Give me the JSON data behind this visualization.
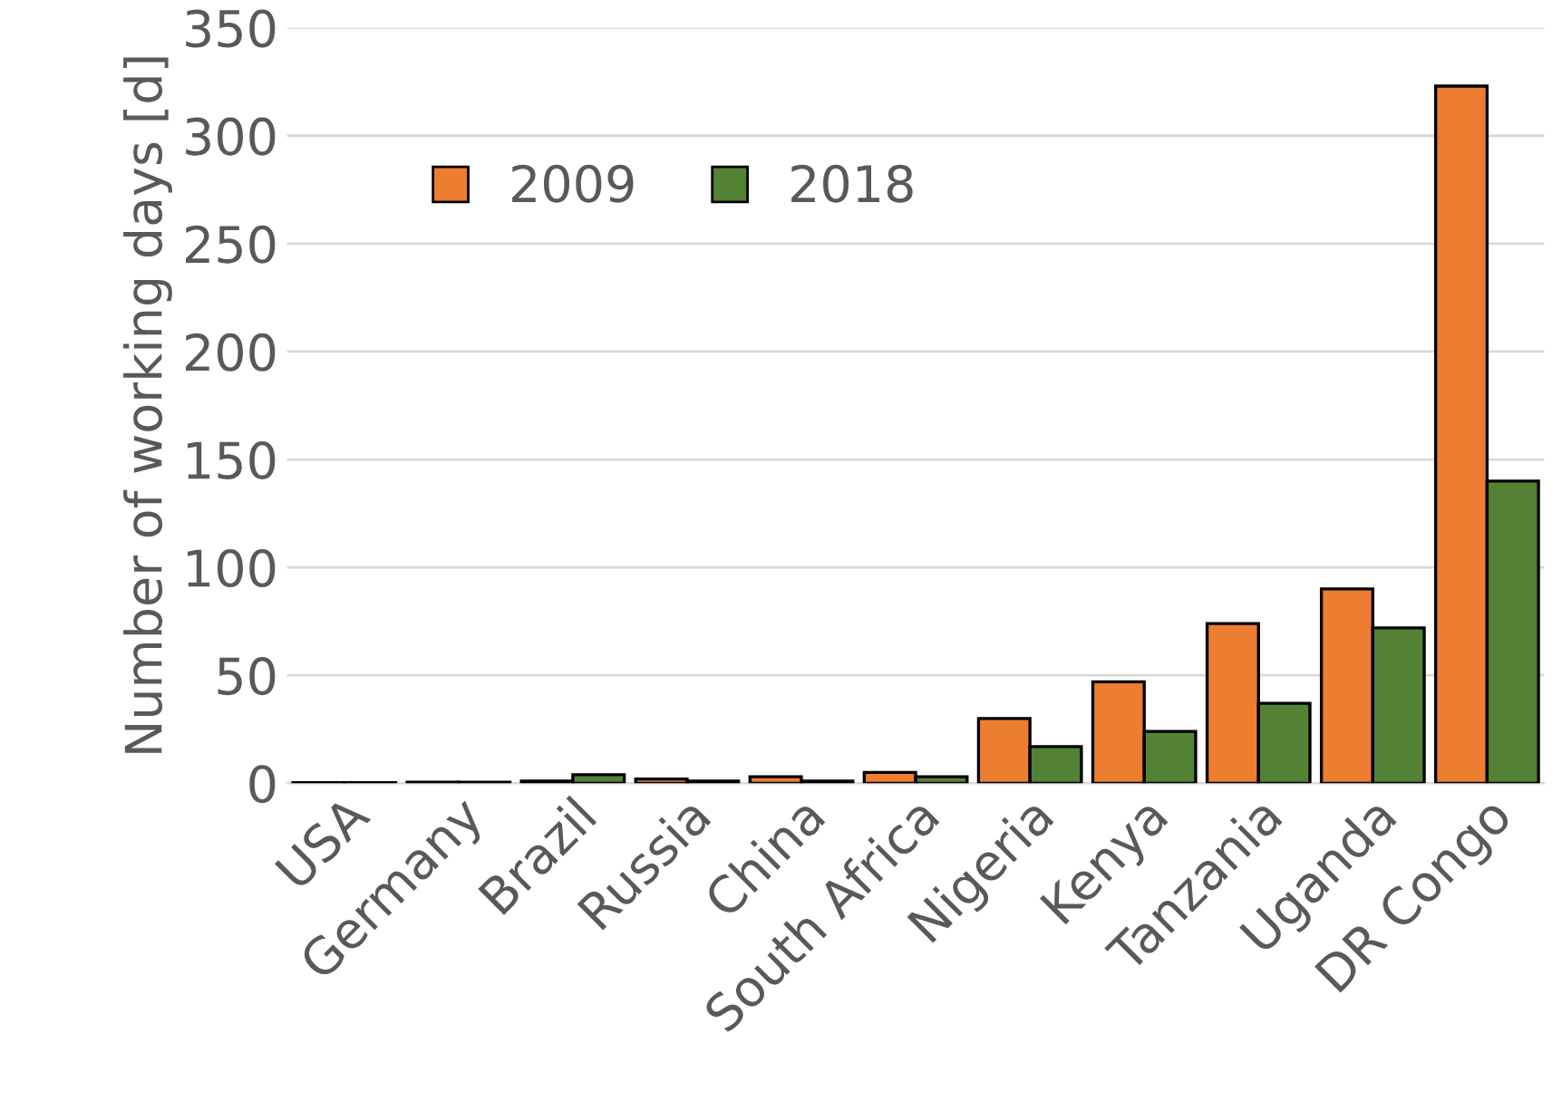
{
  "chart_data": {
    "type": "bar",
    "ylabel": "Number of working days [d]",
    "categories": [
      "USA",
      "Germany",
      "Brazil",
      "Russia",
      "China",
      "South Africa",
      "Nigeria",
      "Kenya",
      "Tanzania",
      "Uganda",
      "DR Congo"
    ],
    "series": [
      {
        "name": "2009",
        "color": "#ed7d31",
        "values": [
          0.3,
          0.5,
          1,
          2,
          3,
          5,
          30,
          47,
          74,
          90,
          323
        ]
      },
      {
        "name": "2018",
        "color": "#548235",
        "values": [
          0.3,
          0.5,
          4,
          1,
          1,
          3,
          17,
          24,
          37,
          72,
          140
        ]
      }
    ],
    "ylim": [
      0,
      350
    ],
    "yticks": [
      0,
      50,
      100,
      150,
      200,
      250,
      300,
      350
    ],
    "grid": "y",
    "legend": "top left"
  }
}
